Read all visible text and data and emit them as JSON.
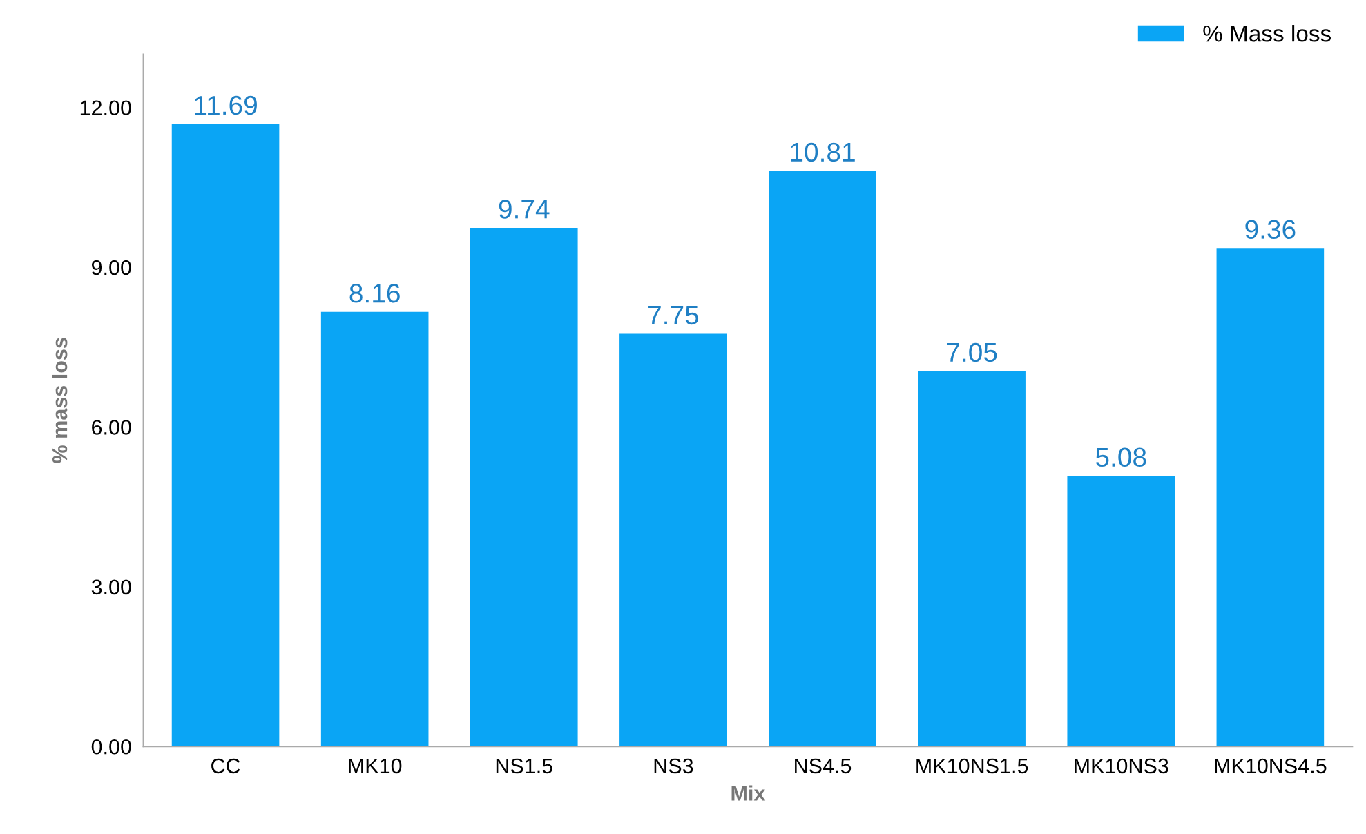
{
  "chart_data": {
    "type": "bar",
    "xlabel": "Mix",
    "ylabel": "% mass loss",
    "categories": [
      "CC",
      "MK10",
      "NS1.5",
      "NS3",
      "NS4.5",
      "MK10NS1.5",
      "MK10NS3",
      "MK10NS4.5"
    ],
    "series": [
      {
        "name": "% Mass loss",
        "color": "#0aa5f5",
        "values": [
          11.69,
          8.16,
          9.74,
          7.75,
          10.81,
          7.05,
          5.08,
          9.36
        ]
      }
    ],
    "ylim": [
      0,
      13
    ],
    "yticks": [
      {
        "value": 0,
        "label": "0.00"
      },
      {
        "value": 3,
        "label": "3.00"
      },
      {
        "value": 6,
        "label": "6.00"
      },
      {
        "value": 9,
        "label": "9.00"
      },
      {
        "value": 12,
        "label": "12.00"
      }
    ],
    "data_labels": true,
    "grid": false,
    "legend": "top right"
  }
}
